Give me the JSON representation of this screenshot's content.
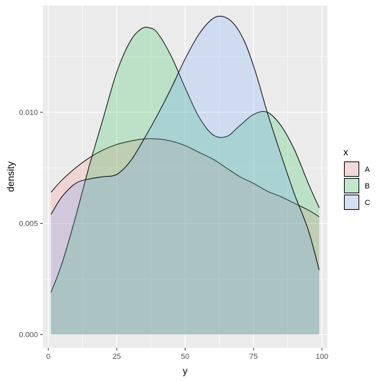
{
  "chart_data": {
    "type": "area",
    "subtype": "density",
    "xlabel": "y",
    "ylabel": "density",
    "xlim": [
      -2,
      102
    ],
    "ylim": [
      -0.0006,
      0.0148
    ],
    "x_ticks": [
      0,
      25,
      50,
      75,
      100
    ],
    "x_tick_labels": [
      "0",
      "25",
      "50",
      "75",
      "100"
    ],
    "y_ticks": [
      0,
      0.005,
      0.01
    ],
    "y_tick_labels": [
      "0.000",
      "0.005",
      "0.010"
    ],
    "grid": true,
    "panel_background": "#ebebeb",
    "legend": {
      "title": "x",
      "position": "right"
    },
    "series": [
      {
        "name": "A",
        "fill": "#F8766D",
        "x": [
          1,
          5,
          10,
          15,
          20,
          25,
          30,
          35,
          40,
          45,
          50,
          55,
          60,
          65,
          70,
          75,
          80,
          85,
          90,
          95,
          99
        ],
        "values": [
          0.0064,
          0.00695,
          0.0075,
          0.00795,
          0.0083,
          0.00855,
          0.0087,
          0.0088,
          0.0088,
          0.0087,
          0.0085,
          0.0082,
          0.0079,
          0.0075,
          0.0071,
          0.0068,
          0.00645,
          0.0062,
          0.0059,
          0.0056,
          0.0053
        ]
      },
      {
        "name": "B",
        "fill": "#00BA38",
        "x": [
          1,
          5,
          10,
          15,
          20,
          25,
          30,
          34,
          37,
          40,
          45,
          50,
          55,
          60,
          65,
          70,
          75,
          80,
          85,
          90,
          95,
          99
        ],
        "values": [
          0.0019,
          0.0032,
          0.0053,
          0.0076,
          0.0097,
          0.0118,
          0.0132,
          0.01375,
          0.0138,
          0.01355,
          0.0125,
          0.0111,
          0.0098,
          0.009,
          0.0089,
          0.0094,
          0.0099,
          0.01,
          0.0094,
          0.0083,
          0.0068,
          0.0057
        ]
      },
      {
        "name": "C",
        "fill": "#619CFF",
        "x": [
          1,
          5,
          10,
          15,
          20,
          25,
          30,
          35,
          40,
          45,
          50,
          55,
          60,
          64,
          68,
          72,
          76,
          80,
          85,
          90,
          95,
          99
        ],
        "values": [
          0.0054,
          0.0062,
          0.0068,
          0.007,
          0.0071,
          0.0072,
          0.0078,
          0.0088,
          0.0099,
          0.0111,
          0.0124,
          0.0135,
          0.0142,
          0.0143,
          0.01395,
          0.0131,
          0.0117,
          0.01,
          0.0081,
          0.0063,
          0.0047,
          0.0029
        ]
      }
    ],
    "fill_alpha": 0.2
  }
}
